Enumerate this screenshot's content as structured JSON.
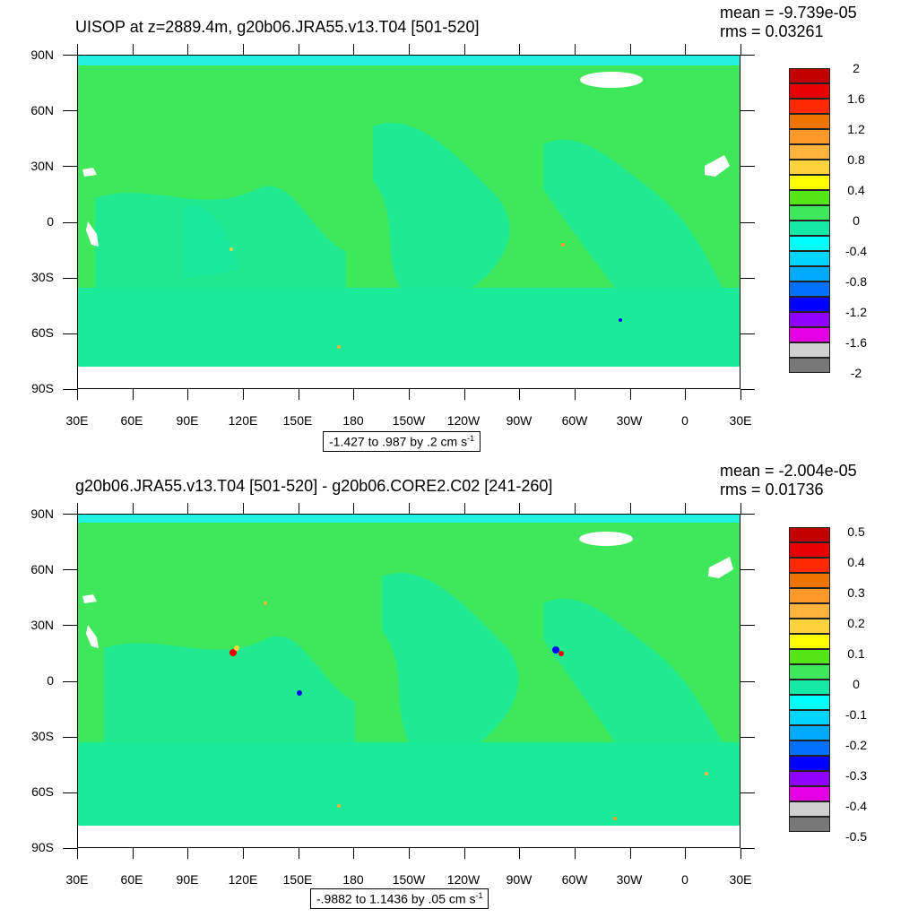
{
  "panels": [
    {
      "title": "UISOP at z=2889.4m, g20b06.JRA55.v13.T04 [501-520]",
      "mean": "mean = -9.739e-05",
      "rms": "rms = 0.03261",
      "info_text": "-1.427 to .987 by .2 cm s",
      "info_exp": "-1",
      "legend_labels": [
        "2",
        "1.6",
        "1.2",
        "0.8",
        "0.4",
        "0",
        "-0.4",
        "-0.8",
        "-1.2",
        "-1.6",
        "-2"
      ]
    },
    {
      "title": "g20b06.JRA55.v13.T04 [501-520] - g20b06.CORE2.C02 [241-260]",
      "mean": "mean = -2.004e-05",
      "rms": "rms = 0.01736",
      "info_text": "-.9882 to 1.1436 by .05 cm s",
      "info_exp": "-1",
      "legend_labels": [
        "0.5",
        "0.4",
        "0.3",
        "0.2",
        "0.1",
        "0",
        "-0.1",
        "-0.2",
        "-0.3",
        "-0.4",
        "-0.5"
      ]
    }
  ],
  "lat_labels": [
    "90N",
    "60N",
    "30N",
    "0",
    "30S",
    "60S",
    "90S"
  ],
  "lon_labels": [
    "30E",
    "60E",
    "90E",
    "120E",
    "150E",
    "180",
    "150W",
    "120W",
    "90W",
    "60W",
    "30W",
    "0",
    "30E"
  ],
  "legend_colors": [
    "#c30000",
    "#e60000",
    "#ff2a00",
    "#ee7300",
    "#ff9a2a",
    "#ffb33c",
    "#ffd33c",
    "#ffff00",
    "#55e617",
    "#3ee85a",
    "#15eaa5",
    "#00ffff",
    "#00d5ff",
    "#00aaff",
    "#0070ff",
    "#0000ff",
    "#8e00ff",
    "#e600e6",
    "#d0d0d0",
    "#787878"
  ],
  "map_colors": {
    "land": "#ffffff",
    "ocean_pos": "#3ee85a",
    "ocean_neg": "#15eaa5",
    "cyan": "#22f0e0"
  }
}
